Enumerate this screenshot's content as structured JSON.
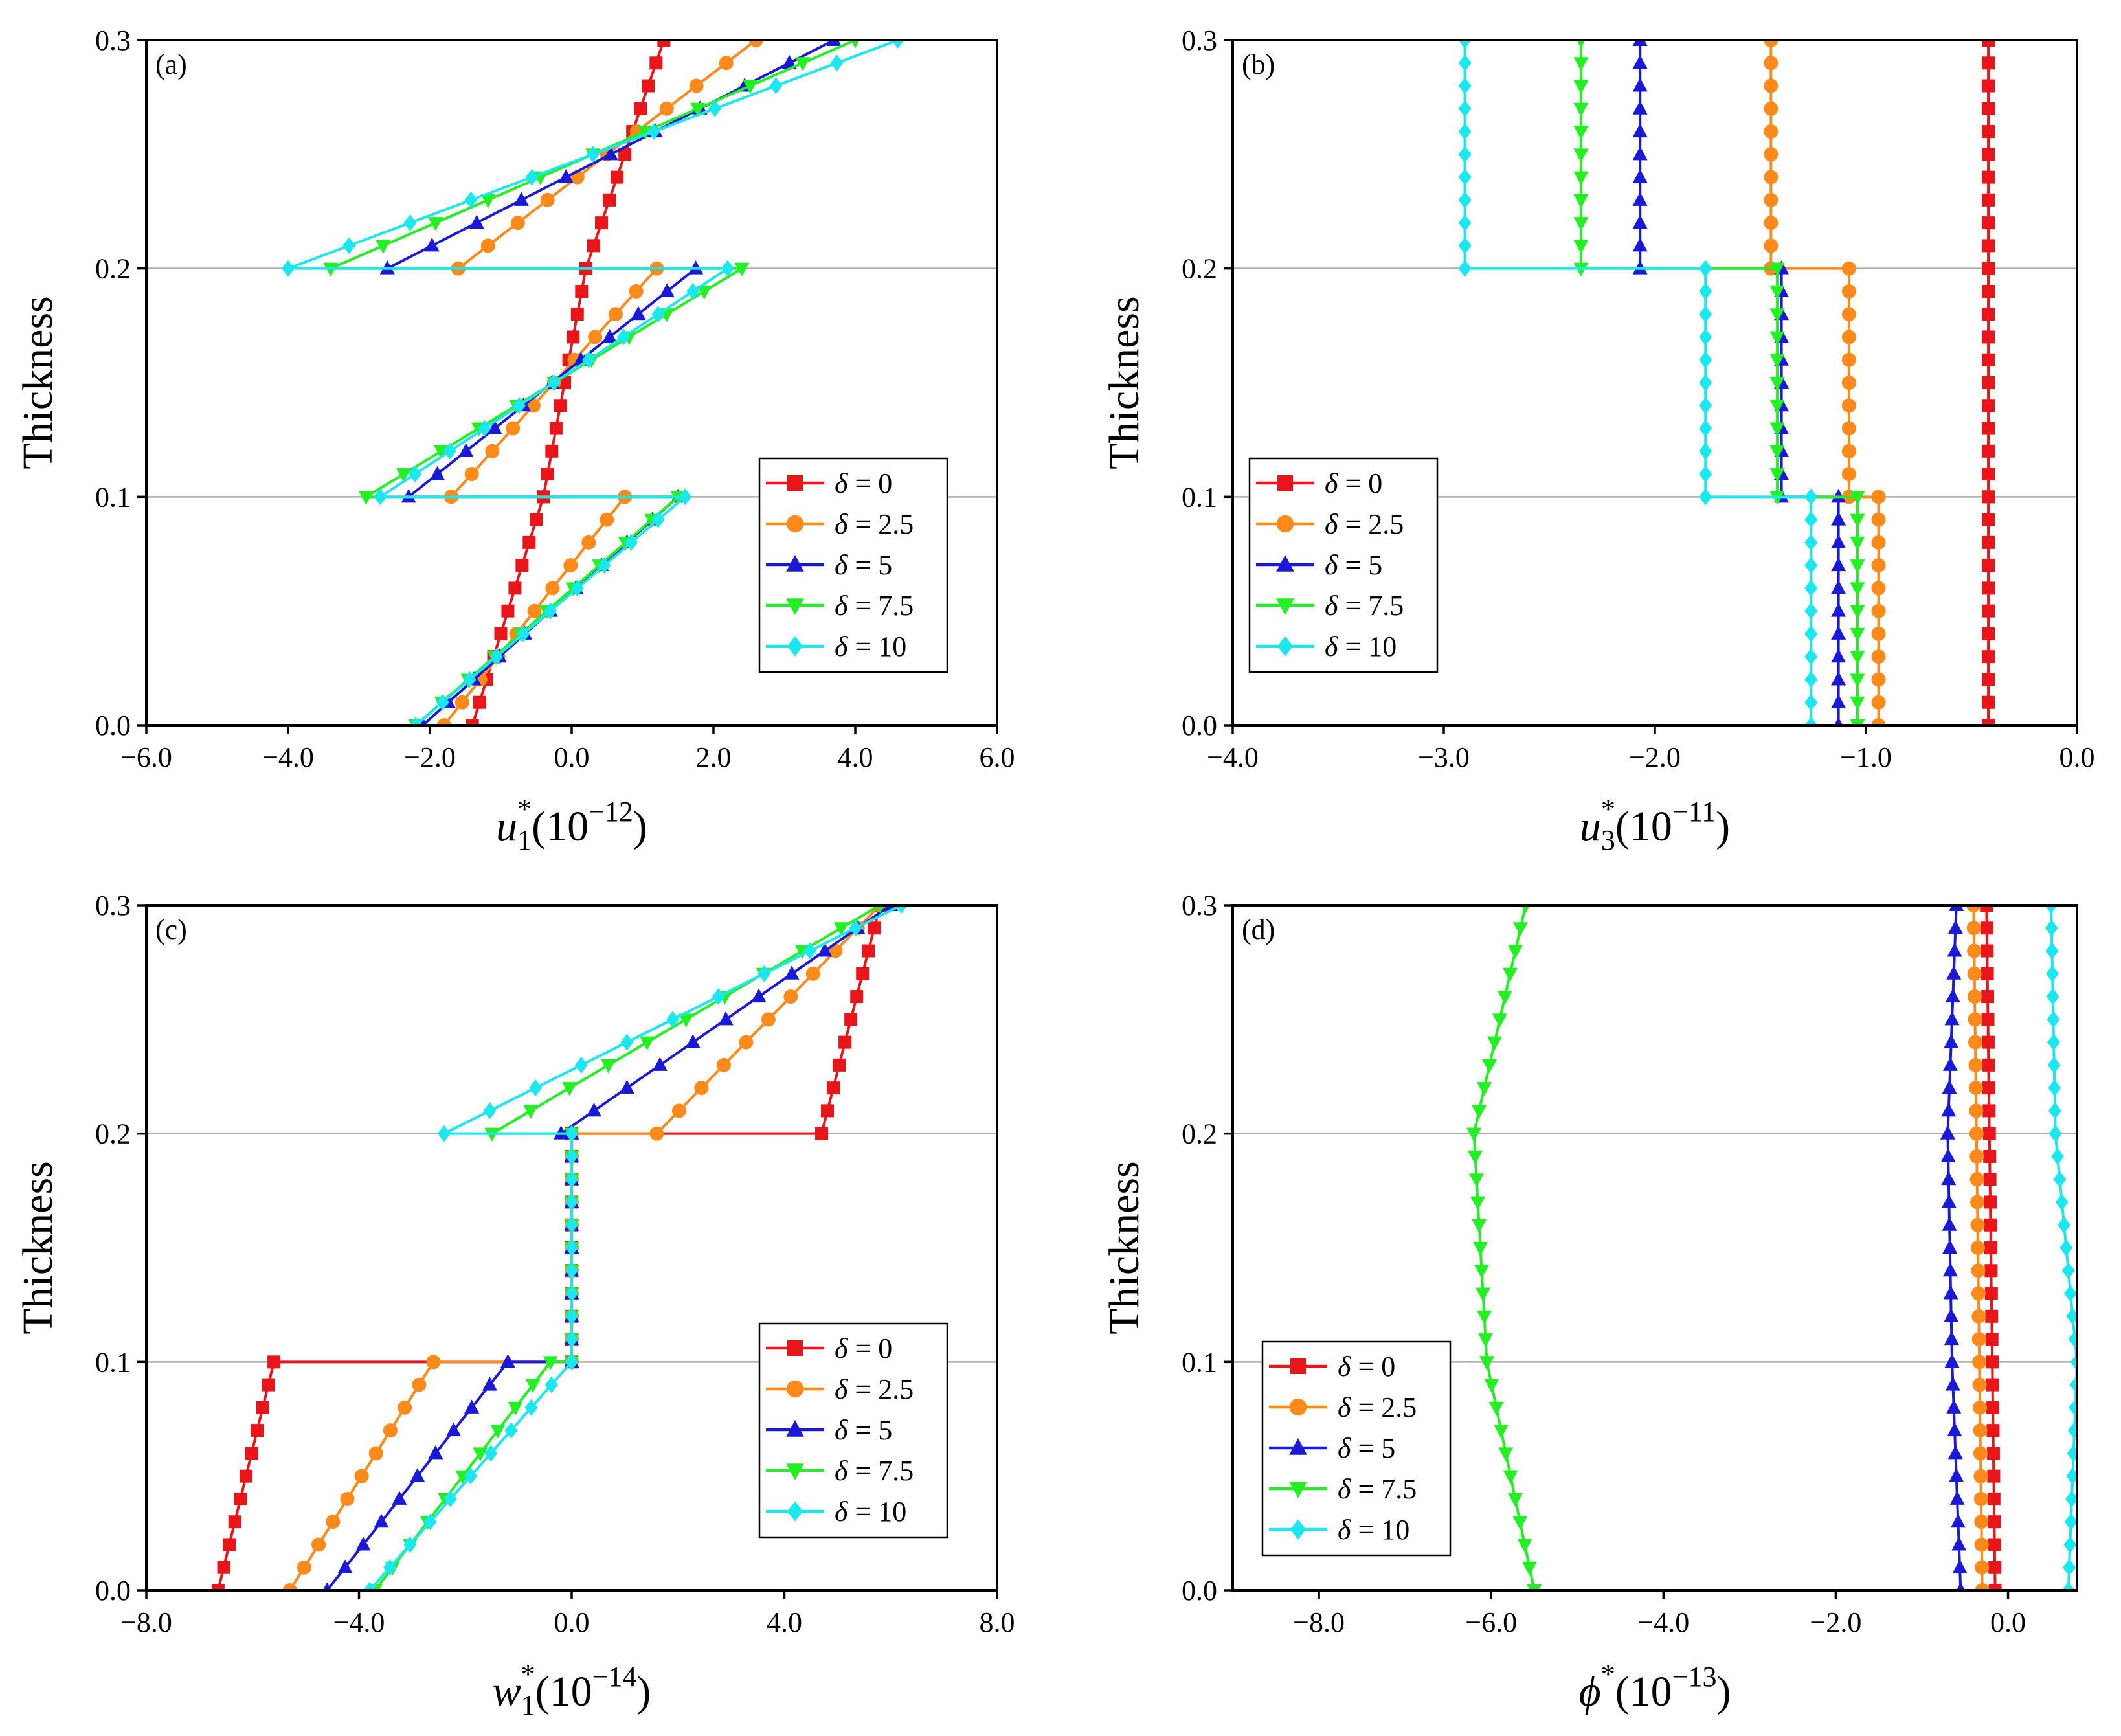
{
  "colors": {
    "red": "#e8161b",
    "orange": "#ff8a1c",
    "blue": "#1a1ad6",
    "green": "#22f022",
    "cyan": "#1ce6ee"
  },
  "legend_labels": [
    "δ = 0",
    "δ = 2.5",
    "δ = 5",
    "δ = 7.5",
    "δ = 10"
  ],
  "chart_data": [
    {
      "id": "a",
      "type": "line",
      "panel_label": "(a)",
      "xlabel": "u1*(10−12)",
      "xlabel_parts": {
        "base": "u",
        "sub": "1",
        "sup": "*",
        "unit": "(10",
        "exp": "−12",
        "close": ")"
      },
      "ylabel": "Thickness",
      "xlim": [
        -6,
        6
      ],
      "ylim": [
        0,
        0.3
      ],
      "xticks": [
        -6,
        -4,
        -2,
        0,
        2,
        4,
        6
      ],
      "xtick_labels": [
        "−6.0",
        "−4.0",
        "−2.0",
        "0.0",
        "2.0",
        "4.0",
        "6.0"
      ],
      "yticks": [
        0,
        0.1,
        0.2,
        0.3
      ],
      "ytick_labels": [
        "0.0",
        "0.1",
        "0.2",
        "0.3"
      ],
      "hlines": [
        0.1,
        0.2
      ],
      "legend": {
        "position": "lower-right"
      },
      "series": [
        {
          "name": "δ = 0",
          "marker": "square",
          "segments": [
            {
              "x0": -1.4,
              "x1": -0.4,
              "y0": 0.0,
              "y1": 0.1,
              "n": 11
            },
            {
              "x0": -0.4,
              "x1": 0.2,
              "y0": 0.1,
              "y1": 0.2,
              "n": 11
            },
            {
              "x0": 0.2,
              "x1": 1.3,
              "y0": 0.2,
              "y1": 0.3,
              "n": 11
            }
          ]
        },
        {
          "name": "δ = 2.5",
          "marker": "circle",
          "segments": [
            {
              "x0": -1.8,
              "x1": 0.75,
              "y0": 0.0,
              "y1": 0.1,
              "n": 11
            },
            {
              "x0": -1.7,
              "x1": 1.2,
              "y0": 0.1,
              "y1": 0.2,
              "n": 11
            },
            {
              "x0": -1.6,
              "x1": 2.6,
              "y0": 0.2,
              "y1": 0.3,
              "n": 11
            }
          ]
        },
        {
          "name": "δ = 5",
          "marker": "triangle-up",
          "segments": [
            {
              "x0": -2.1,
              "x1": 1.5,
              "y0": 0.0,
              "y1": 0.1,
              "n": 11
            },
            {
              "x0": -2.3,
              "x1": 1.75,
              "y0": 0.1,
              "y1": 0.2,
              "n": 11
            },
            {
              "x0": -2.6,
              "x1": 3.7,
              "y0": 0.2,
              "y1": 0.3,
              "n": 11
            }
          ]
        },
        {
          "name": "δ = 7.5",
          "marker": "triangle-down",
          "segments": [
            {
              "x0": -2.2,
              "x1": 1.5,
              "y0": 0.0,
              "y1": 0.1,
              "n": 11
            },
            {
              "x0": -2.9,
              "x1": 2.4,
              "y0": 0.1,
              "y1": 0.2,
              "n": 11
            },
            {
              "x0": -3.4,
              "x1": 4.0,
              "y0": 0.2,
              "y1": 0.3,
              "n": 11
            }
          ]
        },
        {
          "name": "δ = 10",
          "marker": "diamond",
          "segments": [
            {
              "x0": -2.2,
              "x1": 1.6,
              "y0": 0.0,
              "y1": 0.1,
              "n": 11
            },
            {
              "x0": -2.7,
              "x1": 2.2,
              "y0": 0.1,
              "y1": 0.2,
              "n": 11
            },
            {
              "x0": -4.0,
              "x1": 4.6,
              "y0": 0.2,
              "y1": 0.3,
              "n": 11
            }
          ]
        }
      ]
    },
    {
      "id": "b",
      "type": "line",
      "panel_label": "(b)",
      "xlabel": "u3*(10−11)",
      "xlabel_parts": {
        "base": "u",
        "sub": "3",
        "sup": "*",
        "unit": "(10",
        "exp": "−11",
        "close": ")"
      },
      "ylabel": "Thickness",
      "xlim": [
        -4,
        0
      ],
      "ylim": [
        0,
        0.3
      ],
      "xticks": [
        -4,
        -3,
        -2,
        -1,
        0
      ],
      "xtick_labels": [
        "−4.0",
        "−3.0",
        "−2.0",
        "−1.0",
        "0.0"
      ],
      "yticks": [
        0,
        0.1,
        0.2,
        0.3
      ],
      "ytick_labels": [
        "0.0",
        "0.1",
        "0.2",
        "0.3"
      ],
      "hlines": [
        0.1,
        0.2
      ],
      "legend": {
        "position": "lower-left"
      },
      "series": [
        {
          "name": "δ = 0",
          "marker": "square",
          "segments": [
            {
              "x0": -0.42,
              "x1": -0.42,
              "y0": 0.0,
              "y1": 0.1,
              "n": 11
            },
            {
              "x0": -0.42,
              "x1": -0.42,
              "y0": 0.1,
              "y1": 0.2,
              "n": 11
            },
            {
              "x0": -0.42,
              "x1": -0.42,
              "y0": 0.2,
              "y1": 0.3,
              "n": 11
            }
          ]
        },
        {
          "name": "δ = 2.5",
          "marker": "circle",
          "segments": [
            {
              "x0": -0.94,
              "x1": -0.94,
              "y0": 0.0,
              "y1": 0.1,
              "n": 11
            },
            {
              "x0": -1.08,
              "x1": -1.08,
              "y0": 0.1,
              "y1": 0.2,
              "n": 11
            },
            {
              "x0": -1.45,
              "x1": -1.45,
              "y0": 0.2,
              "y1": 0.3,
              "n": 11
            }
          ]
        },
        {
          "name": "δ = 5",
          "marker": "triangle-up",
          "segments": [
            {
              "x0": -1.13,
              "x1": -1.13,
              "y0": 0.0,
              "y1": 0.1,
              "n": 11
            },
            {
              "x0": -1.4,
              "x1": -1.4,
              "y0": 0.1,
              "y1": 0.2,
              "n": 11
            },
            {
              "x0": -2.07,
              "x1": -2.07,
              "y0": 0.2,
              "y1": 0.3,
              "n": 11
            }
          ]
        },
        {
          "name": "δ = 7.5",
          "marker": "triangle-down",
          "segments": [
            {
              "x0": -1.04,
              "x1": -1.04,
              "y0": 0.0,
              "y1": 0.1,
              "n": 11
            },
            {
              "x0": -1.42,
              "x1": -1.42,
              "y0": 0.1,
              "y1": 0.2,
              "n": 11
            },
            {
              "x0": -2.35,
              "x1": -2.35,
              "y0": 0.2,
              "y1": 0.3,
              "n": 11
            }
          ]
        },
        {
          "name": "δ = 10",
          "marker": "diamond",
          "segments": [
            {
              "x0": -1.26,
              "x1": -1.26,
              "y0": 0.0,
              "y1": 0.1,
              "n": 11
            },
            {
              "x0": -1.76,
              "x1": -1.76,
              "y0": 0.1,
              "y1": 0.2,
              "n": 11
            },
            {
              "x0": -2.9,
              "x1": -2.9,
              "y0": 0.2,
              "y1": 0.3,
              "n": 11
            }
          ]
        }
      ]
    },
    {
      "id": "c",
      "type": "line",
      "panel_label": "(c)",
      "xlabel": "w1*(10−14)",
      "xlabel_parts": {
        "base": "w",
        "sub": "1",
        "sup": "*",
        "unit": "(10",
        "exp": "−14",
        "close": ")"
      },
      "ylabel": "Thickness",
      "xlim": [
        -8,
        8
      ],
      "ylim": [
        0,
        0.3
      ],
      "xticks": [
        -8,
        -4,
        0,
        4,
        8
      ],
      "xtick_labels": [
        "−8.0",
        "−4.0",
        "0.0",
        "4.0",
        "8.0"
      ],
      "yticks": [
        0,
        0.1,
        0.2,
        0.3
      ],
      "ytick_labels": [
        "0.0",
        "0.1",
        "0.2",
        "0.3"
      ],
      "hlines": [
        0.1,
        0.2
      ],
      "legend": {
        "position": "lower-right"
      },
      "series": [
        {
          "name": "δ = 0",
          "marker": "square",
          "segments": [
            {
              "x0": -6.65,
              "x1": -5.6,
              "y0": 0.0,
              "y1": 0.1,
              "n": 11
            },
            {
              "x0": 0.0,
              "x1": 0.0,
              "y0": 0.1,
              "y1": 0.2,
              "n": 11
            },
            {
              "x0": 4.7,
              "x1": 5.8,
              "y0": 0.2,
              "y1": 0.3,
              "n": 11
            }
          ]
        },
        {
          "name": "δ = 2.5",
          "marker": "circle",
          "segments": [
            {
              "x0": -5.3,
              "x1": -2.6,
              "y0": 0.0,
              "y1": 0.1,
              "n": 11
            },
            {
              "x0": 0.0,
              "x1": 0.0,
              "y0": 0.1,
              "y1": 0.2,
              "n": 11
            },
            {
              "x0": 1.6,
              "x1": 5.8,
              "y0": 0.2,
              "y1": 0.3,
              "n": 11
            }
          ]
        },
        {
          "name": "δ = 5",
          "marker": "triangle-up",
          "segments": [
            {
              "x0": -4.6,
              "x1": -1.2,
              "y0": 0.0,
              "y1": 0.1,
              "n": 11
            },
            {
              "x0": 0.0,
              "x1": 0.0,
              "y0": 0.1,
              "y1": 0.2,
              "n": 11
            },
            {
              "x0": -0.2,
              "x1": 6.0,
              "y0": 0.2,
              "y1": 0.3,
              "n": 11
            }
          ]
        },
        {
          "name": "δ = 7.5",
          "marker": "triangle-down",
          "segments": [
            {
              "x0": -3.7,
              "x1": -0.4,
              "y0": 0.0,
              "y1": 0.1,
              "n": 11
            },
            {
              "x0": 0.0,
              "x1": 0.0,
              "y0": 0.1,
              "y1": 0.2,
              "n": 11
            },
            {
              "x0": -1.5,
              "x1": 5.8,
              "y0": 0.2,
              "y1": 0.3,
              "n": 11
            }
          ]
        },
        {
          "name": "δ = 10",
          "marker": "diamond",
          "segments": [
            {
              "x0": -3.8,
              "x1": 0.0,
              "y0": 0.0,
              "y1": 0.1,
              "n": 11
            },
            {
              "x0": 0.0,
              "x1": 0.0,
              "y0": 0.1,
              "y1": 0.2,
              "n": 11
            },
            {
              "x0": -2.4,
              "x1": 6.2,
              "y0": 0.2,
              "y1": 0.3,
              "n": 11
            }
          ]
        }
      ]
    },
    {
      "id": "d",
      "type": "line",
      "panel_label": "(d)",
      "xlabel": "ϕ*(10−13)",
      "xlabel_parts": {
        "base": "ϕ",
        "sub": "",
        "sup": "*",
        "unit": "(10",
        "exp": "−13",
        "close": ")"
      },
      "ylabel": "Thickness",
      "xlim": [
        -9,
        0.8
      ],
      "ylim": [
        0,
        0.3
      ],
      "xticks": [
        -8,
        -6,
        -4,
        -2,
        0
      ],
      "xtick_labels": [
        "−8.0",
        "−6.0",
        "−4.0",
        "−2.0",
        "0.0"
      ],
      "yticks": [
        0,
        0.1,
        0.2,
        0.3
      ],
      "ytick_labels": [
        "0.0",
        "0.1",
        "0.2",
        "0.3"
      ],
      "hlines": [
        0.1,
        0.2
      ],
      "legend": {
        "position": "lower-left"
      },
      "series": [
        {
          "name": "δ = 0",
          "marker": "square",
          "segments": [
            {
              "x0": -0.15,
              "x1": -0.25,
              "y0": 0.0,
              "y1": 0.3,
              "n": 31
            }
          ]
        },
        {
          "name": "δ = 2.5",
          "marker": "circle",
          "segments": [
            {
              "x0": -0.3,
              "x1": -0.4,
              "y0": 0.0,
              "y1": 0.3,
              "n": 31
            }
          ]
        },
        {
          "name": "δ = 5",
          "marker": "triangle-up",
          "segments": [
            {
              "x0": -0.55,
              "x1": -0.65,
              "y0": 0.0,
              "y1": 0.1,
              "n": 11
            },
            {
              "x0": -0.65,
              "x1": -0.7,
              "y0": 0.1,
              "y1": 0.2,
              "n": 11
            },
            {
              "x0": -0.7,
              "x1": -0.6,
              "y0": 0.2,
              "y1": 0.3,
              "n": 11
            }
          ]
        },
        {
          "name": "δ = 7.5",
          "marker": "triangle-down",
          "segments": [
            {
              "x0": -5.5,
              "x1": -6.05,
              "y0": 0.0,
              "y1": 0.1,
              "n": 11
            },
            {
              "x0": -6.05,
              "x1": -6.2,
              "y0": 0.1,
              "y1": 0.2,
              "n": 11
            },
            {
              "x0": -6.2,
              "x1": -5.6,
              "y0": 0.2,
              "y1": 0.3,
              "n": 11
            }
          ]
        },
        {
          "name": "δ = 10",
          "marker": "diamond",
          "segments": [
            {
              "x0": 0.7,
              "x1": 0.8,
              "y0": 0.0,
              "y1": 0.1,
              "n": 11
            },
            {
              "x0": 0.8,
              "x1": 0.55,
              "y0": 0.1,
              "y1": 0.2,
              "n": 11
            },
            {
              "x0": 0.55,
              "x1": 0.5,
              "y0": 0.2,
              "y1": 0.3,
              "n": 11
            }
          ]
        }
      ]
    }
  ]
}
